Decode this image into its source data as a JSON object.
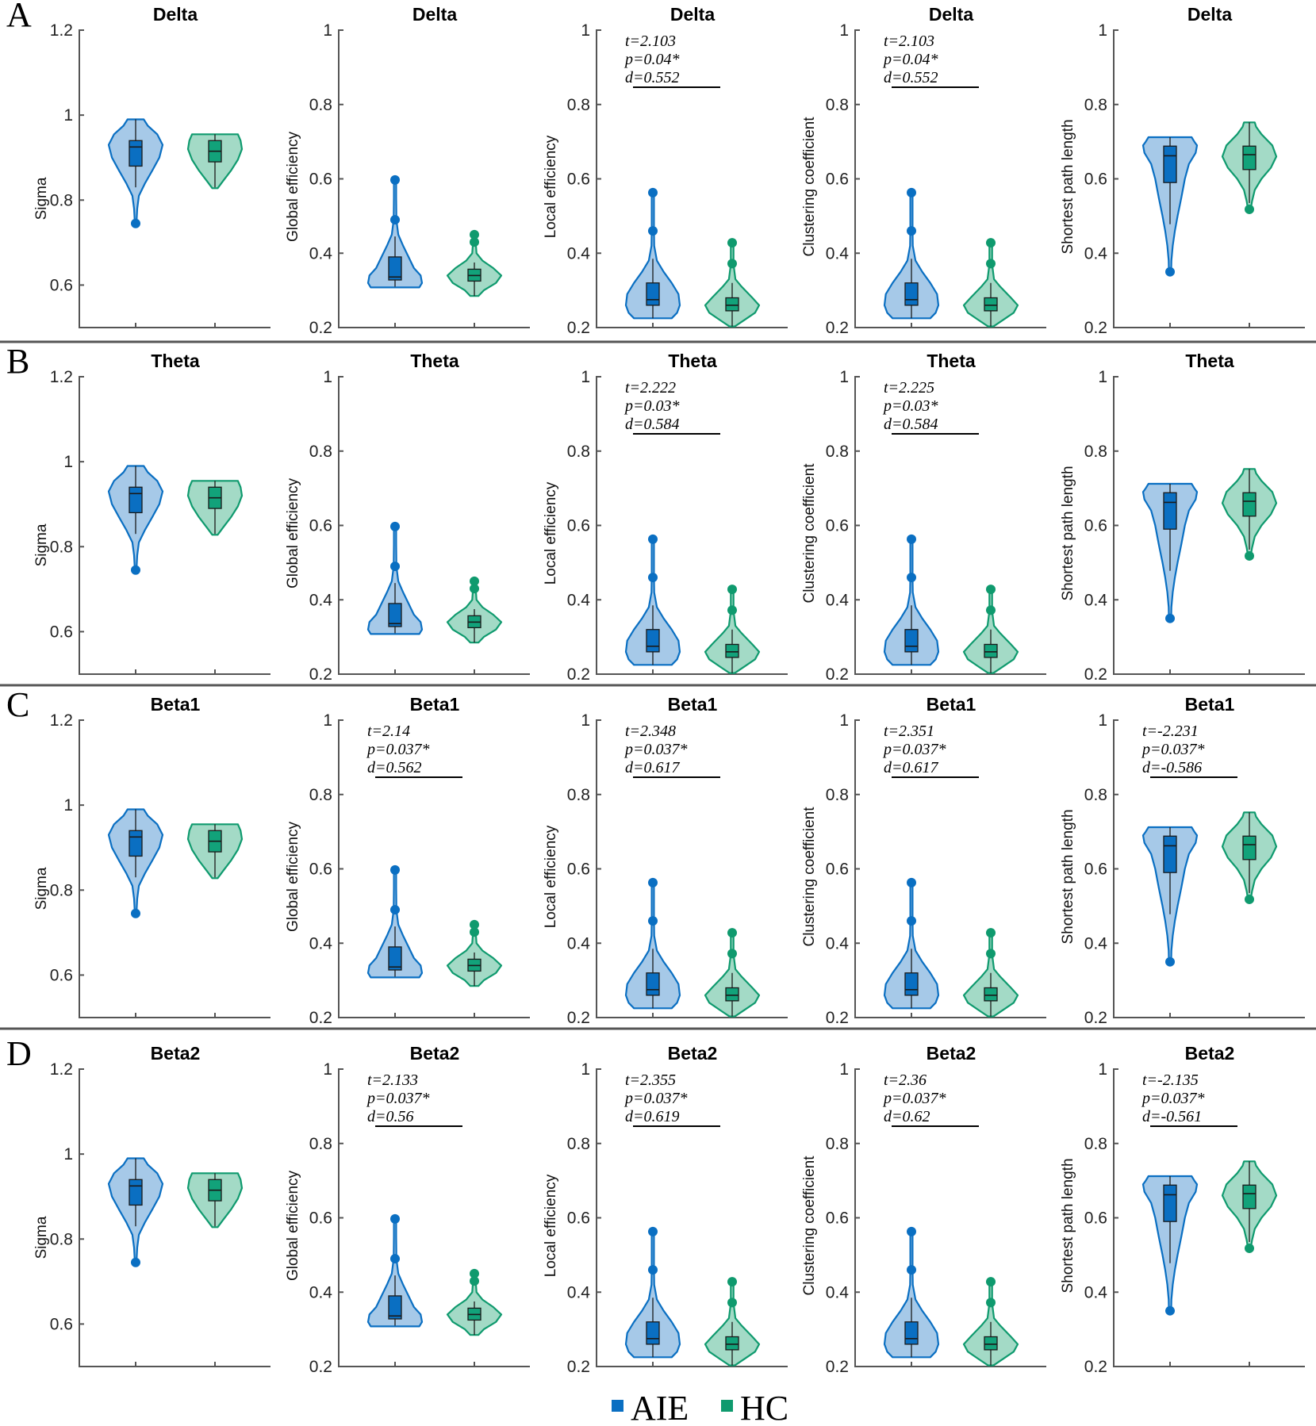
{
  "colors": {
    "AIE": {
      "line": "#0a6fc2",
      "fill": "#a6c9e8",
      "box": "#0a6fc2"
    },
    "HC": {
      "line": "#0f9a6e",
      "fill": "#a3dac6",
      "box": "#12a27a"
    },
    "separator": "#555555",
    "axis": "#555555"
  },
  "legend": {
    "items": [
      {
        "label": "AIE",
        "group": "AIE"
      },
      {
        "label": "HC",
        "group": "HC"
      }
    ]
  },
  "chart_data": {
    "type": "violin",
    "groups": [
      "AIE",
      "HC"
    ],
    "rows": [
      {
        "letter": "A",
        "band": "Delta"
      },
      {
        "letter": "B",
        "band": "Theta"
      },
      {
        "letter": "C",
        "band": "Beta1"
      },
      {
        "letter": "D",
        "band": "Beta2"
      }
    ],
    "metrics": [
      {
        "key": "sigma",
        "ylabel": "Sigma",
        "ylim": [
          0.5,
          1.2
        ],
        "yticks": [
          0.6,
          0.8,
          1,
          1.2
        ],
        "ytick_labels": [
          "0.6",
          "0.8",
          "1",
          "1.2"
        ],
        "distributions": {
          "AIE": {
            "min": 0.83,
            "q1": 0.88,
            "median": 0.925,
            "q3": 0.94,
            "max": 0.99,
            "outliers": [
              0.745
            ],
            "violin": [
              [
                0.745,
                0.03
              ],
              [
                0.78,
                0.06
              ],
              [
                0.81,
                0.12
              ],
              [
                0.84,
                0.35
              ],
              [
                0.87,
                0.62
              ],
              [
                0.9,
                0.88
              ],
              [
                0.93,
                1.0
              ],
              [
                0.955,
                0.8
              ],
              [
                0.975,
                0.45
              ],
              [
                0.99,
                0.3
              ]
            ]
          },
          "HC": {
            "min": 0.83,
            "q1": 0.89,
            "median": 0.915,
            "q3": 0.94,
            "max": 0.955,
            "outliers": [],
            "violin": [
              [
                0.828,
                0.1
              ],
              [
                0.845,
                0.3
              ],
              [
                0.87,
                0.6
              ],
              [
                0.895,
                0.85
              ],
              [
                0.92,
                1.0
              ],
              [
                0.94,
                0.95
              ],
              [
                0.955,
                0.85
              ]
            ]
          }
        },
        "stats": [
          null,
          null,
          null,
          null
        ]
      },
      {
        "key": "global_efficiency",
        "ylabel": "Global efficiency",
        "ylim": [
          0.2,
          1
        ],
        "yticks": [
          0.2,
          0.4,
          0.6,
          0.8,
          1
        ],
        "ytick_labels": [
          "0.2",
          "0.4",
          "0.6",
          "0.8",
          "1"
        ],
        "distributions": {
          "AIE": {
            "min": 0.31,
            "q1": 0.328,
            "median": 0.336,
            "q3": 0.39,
            "max": 0.445,
            "outliers": [
              0.49,
              0.597
            ],
            "violin": [
              [
                0.308,
                0.9
              ],
              [
                0.32,
                1.0
              ],
              [
                0.34,
                0.95
              ],
              [
                0.36,
                0.7
              ],
              [
                0.39,
                0.5
              ],
              [
                0.42,
                0.3
              ],
              [
                0.45,
                0.12
              ],
              [
                0.49,
                0.05
              ],
              [
                0.55,
                0.04
              ],
              [
                0.597,
                0.04
              ]
            ]
          },
          "HC": {
            "min": 0.285,
            "q1": 0.325,
            "median": 0.34,
            "q3": 0.357,
            "max": 0.375,
            "outliers": [
              0.43,
              0.45
            ],
            "violin": [
              [
                0.285,
                0.15
              ],
              [
                0.3,
                0.35
              ],
              [
                0.32,
                0.8
              ],
              [
                0.34,
                1.0
              ],
              [
                0.36,
                0.7
              ],
              [
                0.38,
                0.3
              ],
              [
                0.4,
                0.08
              ],
              [
                0.43,
                0.05
              ],
              [
                0.45,
                0.05
              ]
            ]
          }
        },
        "stats": [
          null,
          null,
          {
            "t": "t=2.14",
            "p": "p=0.037*",
            "d": "d=0.562"
          },
          {
            "t": "t=2.133",
            "p": "p=0.037*",
            "d": "d=0.56"
          }
        ]
      },
      {
        "key": "local_efficiency",
        "ylabel": "Local efficiency",
        "ylim": [
          0.2,
          1
        ],
        "yticks": [
          0.2,
          0.4,
          0.6,
          0.8,
          1
        ],
        "ytick_labels": [
          "0.2",
          "0.4",
          "0.6",
          "0.8",
          "1"
        ],
        "distributions": {
          "AIE": {
            "min": 0.225,
            "q1": 0.26,
            "median": 0.275,
            "q3": 0.32,
            "max": 0.385,
            "outliers": [
              0.46,
              0.563
            ],
            "violin": [
              [
                0.225,
                0.7
              ],
              [
                0.24,
                0.9
              ],
              [
                0.26,
                1.0
              ],
              [
                0.29,
                0.95
              ],
              [
                0.32,
                0.7
              ],
              [
                0.35,
                0.4
              ],
              [
                0.38,
                0.15
              ],
              [
                0.42,
                0.05
              ],
              [
                0.46,
                0.04
              ],
              [
                0.52,
                0.04
              ],
              [
                0.563,
                0.04
              ]
            ]
          },
          "HC": {
            "min": 0.203,
            "q1": 0.245,
            "median": 0.26,
            "q3": 0.28,
            "max": 0.32,
            "outliers": [
              0.372,
              0.428
            ],
            "violin": [
              [
                0.203,
                0.1
              ],
              [
                0.22,
                0.45
              ],
              [
                0.24,
                0.85
              ],
              [
                0.26,
                1.0
              ],
              [
                0.28,
                0.75
              ],
              [
                0.31,
                0.35
              ],
              [
                0.33,
                0.12
              ],
              [
                0.37,
                0.05
              ],
              [
                0.428,
                0.05
              ]
            ]
          }
        },
        "stats": [
          {
            "t": "t=2.103",
            "p": "p=0.04*",
            "d": "d=0.552"
          },
          {
            "t": "t=2.222",
            "p": "p=0.03*",
            "d": "d=0.584"
          },
          {
            "t": "t=2.348",
            "p": "p=0.037*",
            "d": "d=0.617"
          },
          {
            "t": "t=2.355",
            "p": "p=0.037*",
            "d": "d=0.619"
          }
        ]
      },
      {
        "key": "clustering_coefficient",
        "ylabel": "Clustering coefficient",
        "ylim": [
          0.2,
          1
        ],
        "yticks": [
          0.2,
          0.4,
          0.6,
          0.8,
          1
        ],
        "ytick_labels": [
          "0.2",
          "0.4",
          "0.6",
          "0.8",
          "1"
        ],
        "distributions": {
          "AIE": {
            "min": 0.225,
            "q1": 0.26,
            "median": 0.275,
            "q3": 0.32,
            "max": 0.385,
            "outliers": [
              0.46,
              0.563
            ],
            "violin": [
              [
                0.225,
                0.7
              ],
              [
                0.24,
                0.9
              ],
              [
                0.26,
                1.0
              ],
              [
                0.29,
                0.95
              ],
              [
                0.32,
                0.7
              ],
              [
                0.35,
                0.4
              ],
              [
                0.38,
                0.15
              ],
              [
                0.42,
                0.05
              ],
              [
                0.46,
                0.04
              ],
              [
                0.52,
                0.04
              ],
              [
                0.563,
                0.04
              ]
            ]
          },
          "HC": {
            "min": 0.203,
            "q1": 0.245,
            "median": 0.26,
            "q3": 0.28,
            "max": 0.32,
            "outliers": [
              0.372,
              0.428
            ],
            "violin": [
              [
                0.203,
                0.1
              ],
              [
                0.22,
                0.45
              ],
              [
                0.24,
                0.85
              ],
              [
                0.26,
                1.0
              ],
              [
                0.28,
                0.75
              ],
              [
                0.31,
                0.35
              ],
              [
                0.33,
                0.12
              ],
              [
                0.37,
                0.05
              ],
              [
                0.428,
                0.05
              ]
            ]
          }
        },
        "stats": [
          {
            "t": "t=2.103",
            "p": "p=0.04*",
            "d": "d=0.552"
          },
          {
            "t": "t=2.225",
            "p": "p=0.03*",
            "d": "d=0.584"
          },
          {
            "t": "t=2.351",
            "p": "p=0.037*",
            "d": "d=0.617"
          },
          {
            "t": "t=2.36",
            "p": "p=0.037*",
            "d": "d=0.62"
          }
        ]
      },
      {
        "key": "shortest_path_length",
        "ylabel": "Shortest path length",
        "ylim": [
          0.2,
          1
        ],
        "yticks": [
          0.2,
          0.4,
          0.6,
          0.8,
          1
        ],
        "ytick_labels": [
          "0.2",
          "0.4",
          "0.6",
          "0.8",
          "1"
        ],
        "distributions": {
          "AIE": {
            "min": 0.478,
            "q1": 0.59,
            "median": 0.662,
            "q3": 0.688,
            "max": 0.712,
            "outliers": [
              0.35
            ],
            "violin": [
              [
                0.35,
                0.04
              ],
              [
                0.38,
                0.05
              ],
              [
                0.42,
                0.1
              ],
              [
                0.46,
                0.18
              ],
              [
                0.5,
                0.28
              ],
              [
                0.55,
                0.42
              ],
              [
                0.6,
                0.55
              ],
              [
                0.64,
                0.7
              ],
              [
                0.67,
                0.95
              ],
              [
                0.69,
                1.0
              ],
              [
                0.7,
                0.9
              ],
              [
                0.712,
                0.8
              ]
            ]
          },
          "HC": {
            "min": 0.535,
            "q1": 0.625,
            "median": 0.665,
            "q3": 0.688,
            "max": 0.752,
            "outliers": [
              0.518
            ],
            "violin": [
              [
                0.518,
                0.05
              ],
              [
                0.54,
                0.1
              ],
              [
                0.57,
                0.2
              ],
              [
                0.6,
                0.45
              ],
              [
                0.63,
                0.8
              ],
              [
                0.66,
                1.0
              ],
              [
                0.69,
                0.85
              ],
              [
                0.72,
                0.45
              ],
              [
                0.74,
                0.25
              ],
              [
                0.752,
                0.2
              ]
            ]
          }
        },
        "stats": [
          null,
          null,
          {
            "t": "t=-2.231",
            "p": "p=0.037*",
            "d": "d=-0.586"
          },
          {
            "t": "t=-2.135",
            "p": "p=0.037*",
            "d": "d=-0.561"
          }
        ]
      }
    ]
  }
}
